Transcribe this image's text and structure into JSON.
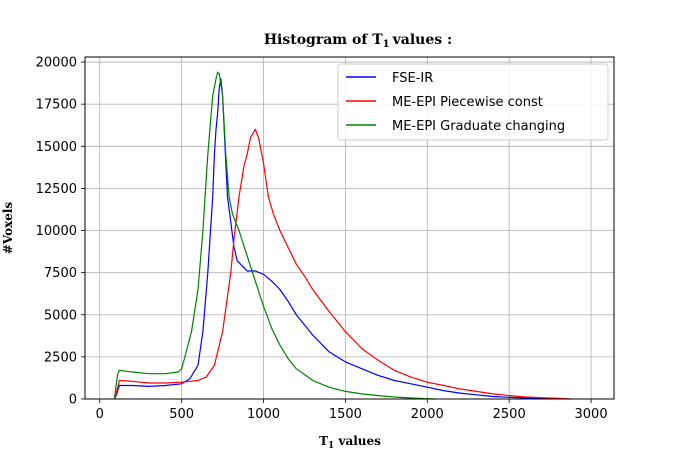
{
  "chart_data": {
    "type": "line",
    "title": "Histogram of T",
    "title_sub": "1",
    "title_suffix": "values :",
    "xlabel": "T",
    "xlabel_sub": "1",
    "xlabel_suffix": " values",
    "ylabel": "#Voxels",
    "xlim": [
      -90,
      3140
    ],
    "ylim": [
      0,
      20300
    ],
    "xticks": [
      0,
      500,
      1000,
      1500,
      2000,
      2500,
      3000
    ],
    "yticks": [
      0,
      2500,
      5000,
      7500,
      10000,
      12500,
      15000,
      17500,
      20000
    ],
    "grid": true,
    "legend_position": "top-right",
    "series": [
      {
        "name": "FSE-IR",
        "color": "#0000ff",
        "x": [
          90,
          100,
          120,
          200,
          300,
          400,
          500,
          550,
          600,
          630,
          660,
          690,
          700,
          710,
          720,
          730,
          740,
          750,
          760,
          770,
          780,
          800,
          820,
          840,
          860,
          880,
          900,
          950,
          1000,
          1050,
          1100,
          1150,
          1200,
          1300,
          1400,
          1500,
          1600,
          1700,
          1800,
          1900,
          2000,
          2100,
          2200,
          2300,
          2400,
          2500,
          2600,
          2700,
          2750
        ],
        "y": [
          0,
          200,
          800,
          800,
          750,
          800,
          900,
          1200,
          2000,
          4000,
          7500,
          12000,
          14500,
          16000,
          17000,
          18500,
          19000,
          18000,
          16000,
          14000,
          12000,
          10500,
          9000,
          8200,
          8000,
          7800,
          7600,
          7600,
          7400,
          7000,
          6500,
          5800,
          5000,
          3800,
          2800,
          2200,
          1800,
          1400,
          1100,
          900,
          700,
          500,
          350,
          250,
          150,
          100,
          60,
          30,
          0
        ]
      },
      {
        "name": "ME-EPI Piecewise const",
        "color": "#ff0000",
        "x": [
          90,
          100,
          120,
          200,
          300,
          400,
          500,
          600,
          650,
          700,
          750,
          800,
          820,
          850,
          880,
          900,
          920,
          950,
          970,
          1000,
          1030,
          1060,
          1100,
          1150,
          1200,
          1250,
          1300,
          1400,
          1500,
          1600,
          1700,
          1800,
          1900,
          2000,
          2100,
          2200,
          2300,
          2400,
          2500,
          2600,
          2700,
          2800,
          2880
        ],
        "y": [
          0,
          300,
          1100,
          1050,
          950,
          950,
          1000,
          1100,
          1300,
          2000,
          4000,
          7500,
          9500,
          12000,
          13800,
          14500,
          15500,
          16000,
          15500,
          14000,
          12000,
          11000,
          10000,
          9000,
          8000,
          7300,
          6500,
          5200,
          4000,
          3000,
          2300,
          1700,
          1300,
          1000,
          800,
          600,
          450,
          300,
          200,
          120,
          80,
          40,
          0
        ]
      },
      {
        "name": "ME-EPI Graduate changing",
        "color": "#008000",
        "x": [
          90,
          100,
          110,
          120,
          200,
          300,
          400,
          480,
          500,
          520,
          560,
          600,
          630,
          660,
          690,
          710,
          720,
          730,
          750,
          770,
          790,
          810,
          850,
          900,
          950,
          1000,
          1050,
          1100,
          1150,
          1200,
          1300,
          1400,
          1500,
          1600,
          1700,
          1800,
          1900,
          2000,
          2050
        ],
        "y": [
          0,
          800,
          1500,
          1700,
          1600,
          1500,
          1500,
          1600,
          1800,
          2500,
          4000,
          6500,
          10000,
          14500,
          18000,
          19000,
          19400,
          19300,
          18000,
          14500,
          12000,
          11000,
          10000,
          8500,
          7000,
          5500,
          4200,
          3200,
          2400,
          1800,
          1100,
          700,
          450,
          300,
          200,
          120,
          60,
          20,
          0
        ]
      }
    ]
  }
}
